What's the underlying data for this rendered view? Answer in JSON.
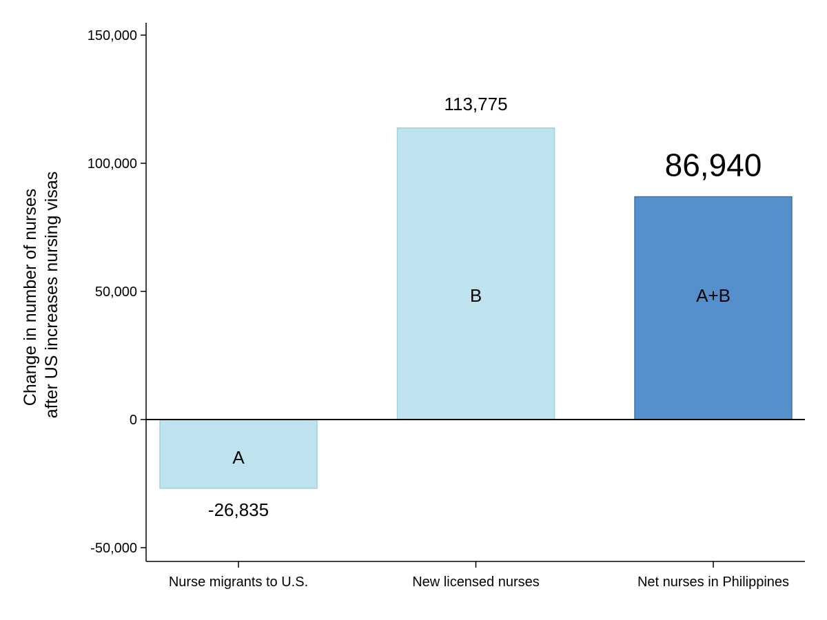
{
  "chart_data": {
    "type": "bar",
    "title": "",
    "xlabel": "",
    "ylabel": [
      "Change in number of nurses",
      "after US increases nursing visas"
    ],
    "ylim": [
      -55000,
      155000
    ],
    "yticks": [
      -50000,
      0,
      50000,
      100000,
      150000
    ],
    "ytick_labels": [
      "-50,000",
      "0",
      "50,000",
      "100,000",
      "150,000"
    ],
    "grid": false,
    "legend": "none",
    "categories": [
      "Nurse migrants to U.S.",
      "New licensed nurses",
      "Net nurses in Philippines"
    ],
    "values": [
      -26835,
      113775,
      86940
    ],
    "value_labels": [
      "-26,835",
      "113,775",
      "86,940"
    ],
    "bar_labels": [
      "A",
      "B",
      "A+B"
    ],
    "bar_colors": [
      "#bee3ee",
      "#bee3ee",
      "#558fcc"
    ],
    "bar_edge_colors": [
      "#9fd0e1",
      "#9fd0e1",
      "#3f73ad"
    ],
    "value_label_colors": [
      "#000000",
      "#000000",
      "#3d74b8"
    ],
    "highlight_index": 2
  }
}
